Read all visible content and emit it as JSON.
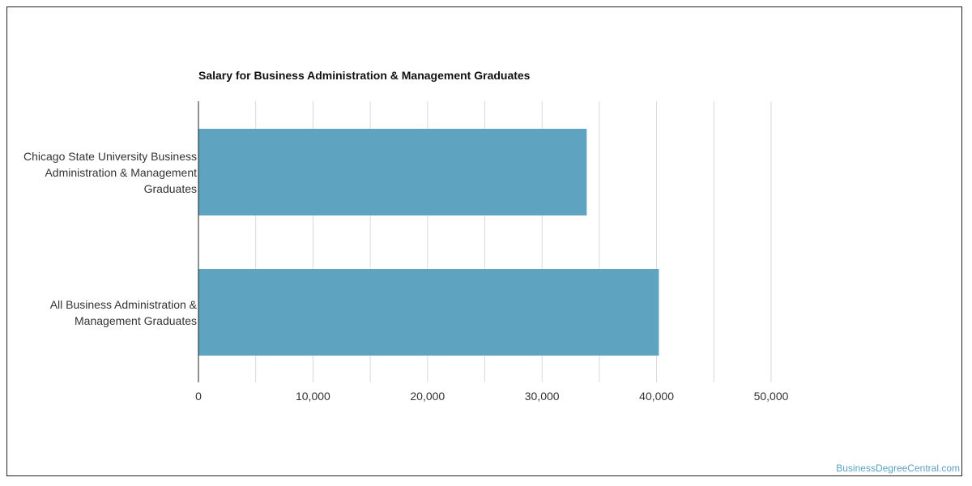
{
  "chart_data": {
    "type": "bar",
    "orientation": "horizontal",
    "title": "Salary for Business Administration & Management Graduates",
    "categories": [
      "Chicago State University Business Administration & Management Graduates",
      "All Business Administration & Management Graduates"
    ],
    "category_lines": [
      [
        "Chicago State University Business",
        "Administration & Management",
        "Graduates"
      ],
      [
        "All Business Administration &",
        "Management Graduates"
      ]
    ],
    "values": [
      33900,
      40200
    ],
    "xlim": [
      0,
      50000
    ],
    "xticks": [
      0,
      10000,
      20000,
      30000,
      40000,
      50000
    ],
    "xtick_labels": [
      "0",
      "10,000",
      "20,000",
      "30,000",
      "40,000",
      "50,000"
    ],
    "xlabel": "",
    "ylabel": "",
    "grid": true,
    "bar_color": "#5ea3bf",
    "grid_color": "#d9d9d9",
    "axis_color": "#222222"
  },
  "watermark": "BusinessDegreeCentral.com"
}
